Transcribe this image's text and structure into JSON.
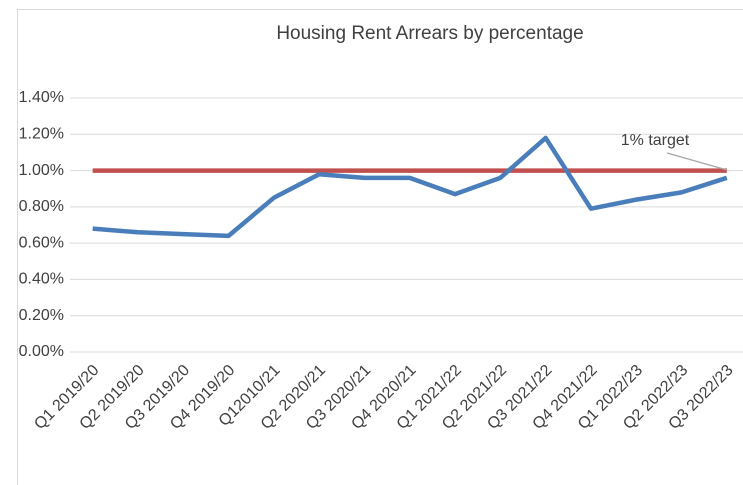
{
  "chart_data": {
    "type": "line",
    "title": "Housing Rent Arrears by percentage",
    "categories": [
      "Q1 2019/20",
      "Q2 2019/20",
      "Q3 2019/20",
      "Q4 2019/20",
      "Q12010/21",
      "Q2 2020/21",
      "Q3 2020/21",
      "Q4 2020/21",
      "Q1 2021/22",
      "Q2 2021/22",
      "Q3 2021/22",
      "Q4 2021/22",
      "Q1 2022/23",
      "Q2 2022/23",
      "Q3 2022/23"
    ],
    "series": [
      {
        "color": "#4a7ebb",
        "values": [
          0.68,
          0.66,
          0.65,
          0.64,
          0.85,
          0.98,
          0.96,
          0.96,
          0.87,
          0.96,
          1.18,
          0.79,
          0.84,
          0.88,
          0.96
        ]
      },
      {
        "color": "#c0504d",
        "values": [
          1,
          1,
          1,
          1,
          1,
          1,
          1,
          1,
          1,
          1,
          1,
          1,
          1,
          1,
          1
        ]
      }
    ],
    "annotations": [
      "1% target"
    ],
    "ylim": [
      0,
      1.4
    ],
    "yticks": [
      {
        "value": 0,
        "label": "0.00%"
      },
      {
        "value": 0.2,
        "label": "0.20%"
      },
      {
        "value": 0.4,
        "label": "0.40%"
      },
      {
        "value": 0.6,
        "label": "0.60%"
      },
      {
        "value": 0.8,
        "label": "0.80%"
      },
      {
        "value": 1,
        "label": "1.00%"
      },
      {
        "value": 1.2,
        "label": "1.20%"
      },
      {
        "value": 1.4,
        "label": "1.40%"
      }
    ],
    "grid": true
  }
}
